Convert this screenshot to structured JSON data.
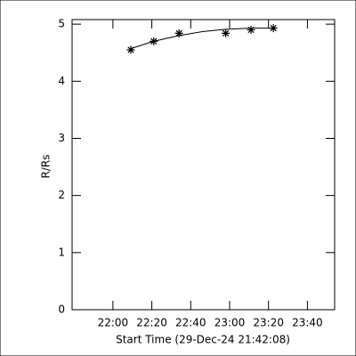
{
  "chart_data": {
    "type": "scatter",
    "x_label": "Start Time (29-Dec-24 21:42:08)",
    "y_label": "R/Rs",
    "xlim": [
      1299,
      1434
    ],
    "xticks": [
      {
        "value": 1320,
        "label": "22:00"
      },
      {
        "value": 1340,
        "label": "22:20"
      },
      {
        "value": 1360,
        "label": "22:40"
      },
      {
        "value": 1380,
        "label": "23:00"
      },
      {
        "value": 1400,
        "label": "23:20"
      },
      {
        "value": 1420,
        "label": "23:40"
      }
    ],
    "ylim": [
      0,
      5.08
    ],
    "yticks": [
      0,
      1,
      2,
      3,
      4,
      5
    ],
    "color": "#000000",
    "x": [
      1329.2,
      1341,
      1354,
      1378,
      1391,
      1402.5
    ],
    "values": [
      4.55,
      4.7,
      4.84,
      4.84,
      4.9,
      4.93
    ],
    "fit": {
      "x": [
        1329,
        1341,
        1354,
        1366,
        1378,
        1391,
        1402.5
      ],
      "values": [
        4.57,
        4.7,
        4.8,
        4.87,
        4.91,
        4.93,
        4.93
      ]
    }
  }
}
